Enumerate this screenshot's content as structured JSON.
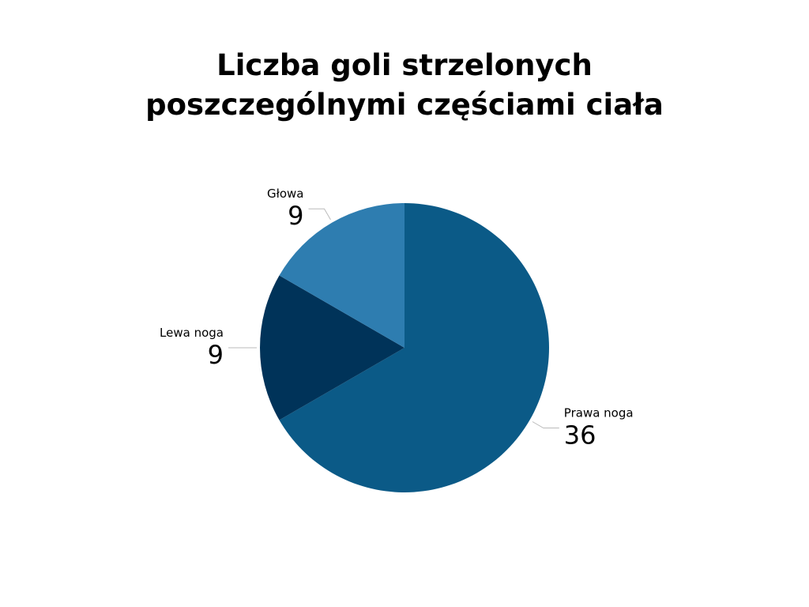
{
  "chart_data": {
    "type": "pie",
    "title": "Liczba goli strzelonych poszczególnymi częściami ciała",
    "categories": [
      "Prawa noga",
      "Lewa noga",
      "Głowa"
    ],
    "values": [
      36,
      9,
      9
    ],
    "colors": [
      "#0b5a87",
      "#003359",
      "#2e7db0"
    ]
  }
}
